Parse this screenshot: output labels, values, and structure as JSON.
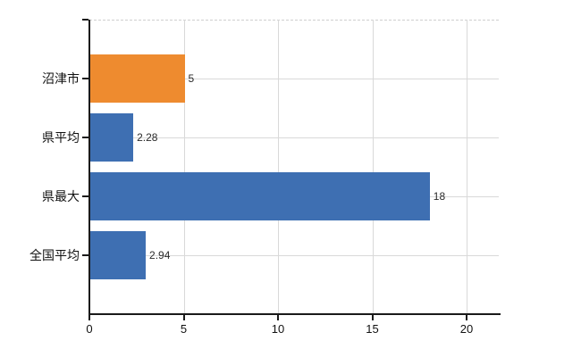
{
  "chart_data": {
    "type": "bar",
    "orientation": "horizontal",
    "title": "",
    "categories": [
      "沼津市",
      "県平均",
      "県最大",
      "全国平均"
    ],
    "values": [
      5,
      2.28,
      18,
      2.94
    ],
    "value_labels": [
      "5",
      "2.28",
      "18",
      "2.94"
    ],
    "bar_colors": [
      "#ee8b2f",
      "#3e6fb2",
      "#3e6fb2",
      "#3e6fb2"
    ],
    "xtick_labels": [
      "0",
      "5",
      "10",
      "15",
      "20"
    ],
    "xtick_values": [
      0,
      5,
      10,
      15,
      20
    ],
    "xlim": [
      0,
      21.7
    ],
    "grid": true,
    "legend": false
  },
  "colors": {
    "bar_orange": "#ee8b2f",
    "bar_blue": "#3e6fb2",
    "gridline": "#d9d9d9",
    "top_border": "#cfcfcf",
    "axis": "#1a1a1a",
    "value_label": "#2b2b2b",
    "tick_label": "#111111",
    "background": "#ffffff"
  }
}
